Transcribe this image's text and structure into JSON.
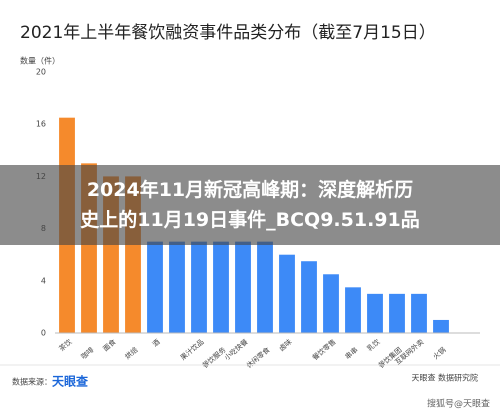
{
  "chart_data": {
    "type": "bar",
    "title": "2021年上半年餐饮融资事件品类分布（截至7月15日）",
    "y_label": "数量（件）",
    "categories": [
      "茶饮",
      "咖啡",
      "面食",
      "烘焙",
      "酒",
      null,
      "果汁饮品",
      "餐饮服务",
      "小吃快餐",
      "休闲零食",
      "卤味",
      null,
      "餐饮零售",
      "串串",
      "乳饮",
      "餐饮集团",
      "互联网外卖",
      "火锅"
    ],
    "values": [
      16.5,
      13,
      12,
      12,
      7,
      7,
      7,
      7,
      7,
      7,
      6,
      5.5,
      4.5,
      3.5,
      3,
      3,
      3,
      1
    ],
    "colors": [
      "#f58a2c",
      "#f58a2c",
      "#f58a2c",
      "#f58a2c",
      "#3d8af7",
      "#3d8af7",
      "#3d8af7",
      "#3d8af7",
      "#3d8af7",
      "#3d8af7",
      "#3d8af7",
      "#3d8af7",
      "#3d8af7",
      "#3d8af7",
      "#3d8af7",
      "#3d8af7",
      "#3d8af7",
      "#3d8af7"
    ],
    "ylim": [
      0,
      20
    ],
    "yticks": [
      0,
      4,
      8,
      12,
      16,
      20
    ],
    "grid": false
  },
  "footer": {
    "source": "数据来源：",
    "source_brand": "天眼查",
    "credit": "天眼查 数据研究院",
    "watermark": "搜狐号@天眼查"
  },
  "overlay": {
    "line1": "2024年11月新冠高峰期：深度解析历",
    "line2": "史上的11月19日事件_BCQ9.51.91品"
  }
}
